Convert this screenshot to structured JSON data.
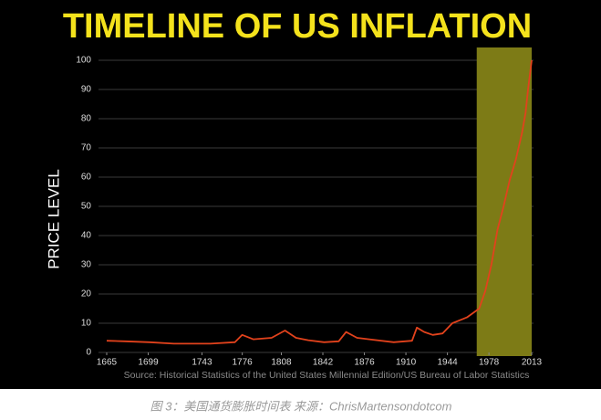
{
  "chart_data": {
    "type": "line",
    "title": "TIMELINE OF US INFLATION",
    "y_label": "PRICE LEVEL",
    "source": "Source: Historical Statistics of the United States Millennial Edition/US Bureau of Labor Statistics",
    "x": [
      1665,
      1680,
      1700,
      1720,
      1750,
      1770,
      1776,
      1785,
      1800,
      1811,
      1820,
      1830,
      1843,
      1855,
      1861,
      1870,
      1880,
      1900,
      1915,
      1919,
      1925,
      1932,
      1940,
      1948,
      1960,
      1970,
      1975,
      1980,
      1985,
      1990,
      1995,
      2000,
      2005,
      2008,
      2010,
      2013
    ],
    "values": [
      4,
      3.8,
      3.5,
      3,
      3,
      3.5,
      6,
      4.5,
      5,
      7.5,
      5,
      4.2,
      3.5,
      3.8,
      7,
      5,
      4.5,
      3.5,
      4,
      8.5,
      7,
      6,
      6.5,
      10,
      12,
      15,
      21,
      30,
      42,
      50,
      59,
      66,
      75,
      82,
      90,
      100
    ],
    "color": "#e2421c",
    "xlim": [
      1665,
      2013
    ],
    "ylim": [
      0,
      100
    ],
    "xticks": [
      1665,
      1699,
      1743,
      1776,
      1808,
      1842,
      1876,
      1910,
      1944,
      1978,
      2013
    ],
    "yticks": [
      0,
      10,
      20,
      30,
      40,
      50,
      60,
      70,
      80,
      90,
      100
    ],
    "grid": true,
    "shaded_range": [
      1968,
      2013
    ],
    "shade_color": "#7d7b16"
  },
  "caption": "图 3：美国通货膨胀时间表  来源：ChrisMartensondotcom"
}
